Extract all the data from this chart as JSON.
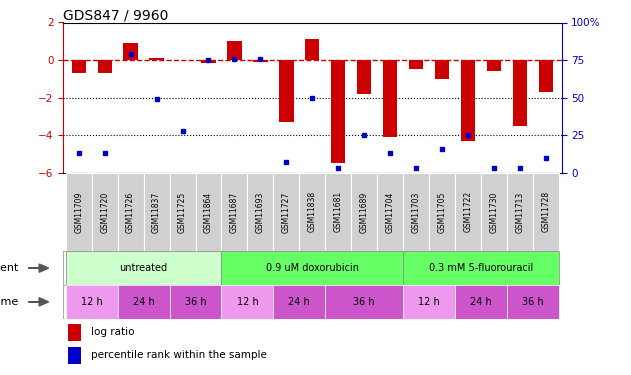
{
  "title": "GDS847 / 9960",
  "samples": [
    "GSM11709",
    "GSM11720",
    "GSM11726",
    "GSM11837",
    "GSM11725",
    "GSM11864",
    "GSM11687",
    "GSM11693",
    "GSM11727",
    "GSM11838",
    "GSM11681",
    "GSM11689",
    "GSM11704",
    "GSM11703",
    "GSM11705",
    "GSM11722",
    "GSM11730",
    "GSM11713",
    "GSM11728"
  ],
  "log_ratios": [
    -0.7,
    -0.7,
    0.9,
    0.1,
    0.0,
    -0.15,
    1.0,
    -0.1,
    -3.3,
    1.1,
    -5.5,
    -1.8,
    -4.1,
    -0.5,
    -1.0,
    -4.3,
    -0.6,
    -3.5,
    -1.7
  ],
  "percentile_ranks": [
    13,
    13,
    79,
    49,
    28,
    75,
    76,
    76,
    7,
    50,
    3,
    25,
    13,
    3,
    16,
    25,
    3,
    3,
    10
  ],
  "ylim": [
    -6,
    2
  ],
  "yticks_left": [
    -6,
    -4,
    -2,
    0,
    2
  ],
  "yticks_right": [
    0,
    25,
    50,
    75,
    100
  ],
  "bar_color": "#cc0000",
  "dot_color": "#0000cc",
  "hline_color": "#cc0000",
  "dotted_line_color": "#000000",
  "axis_left_color": "#cc0000",
  "axis_right_color": "#0000cc",
  "bar_width": 0.55,
  "agent_groups": [
    {
      "label": "untreated",
      "start": 0,
      "end": 5,
      "color": "#ccffcc"
    },
    {
      "label": "0.9 uM doxorubicin",
      "start": 6,
      "end": 12,
      "color": "#66ff66"
    },
    {
      "label": "0.3 mM 5-fluorouracil",
      "start": 13,
      "end": 18,
      "color": "#66ff66"
    }
  ],
  "time_groups": [
    {
      "label": "12 h",
      "start": 0,
      "end": 1,
      "color": "#ee99ee"
    },
    {
      "label": "24 h",
      "start": 2,
      "end": 3,
      "color": "#cc55cc"
    },
    {
      "label": "36 h",
      "start": 4,
      "end": 5,
      "color": "#cc55cc"
    },
    {
      "label": "12 h",
      "start": 6,
      "end": 7,
      "color": "#ee99ee"
    },
    {
      "label": "24 h",
      "start": 8,
      "end": 9,
      "color": "#cc55cc"
    },
    {
      "label": "36 h",
      "start": 10,
      "end": 12,
      "color": "#cc55cc"
    },
    {
      "label": "12 h",
      "start": 13,
      "end": 14,
      "color": "#ee99ee"
    },
    {
      "label": "24 h",
      "start": 15,
      "end": 16,
      "color": "#cc55cc"
    },
    {
      "label": "36 h",
      "start": 17,
      "end": 18,
      "color": "#cc55cc"
    }
  ]
}
